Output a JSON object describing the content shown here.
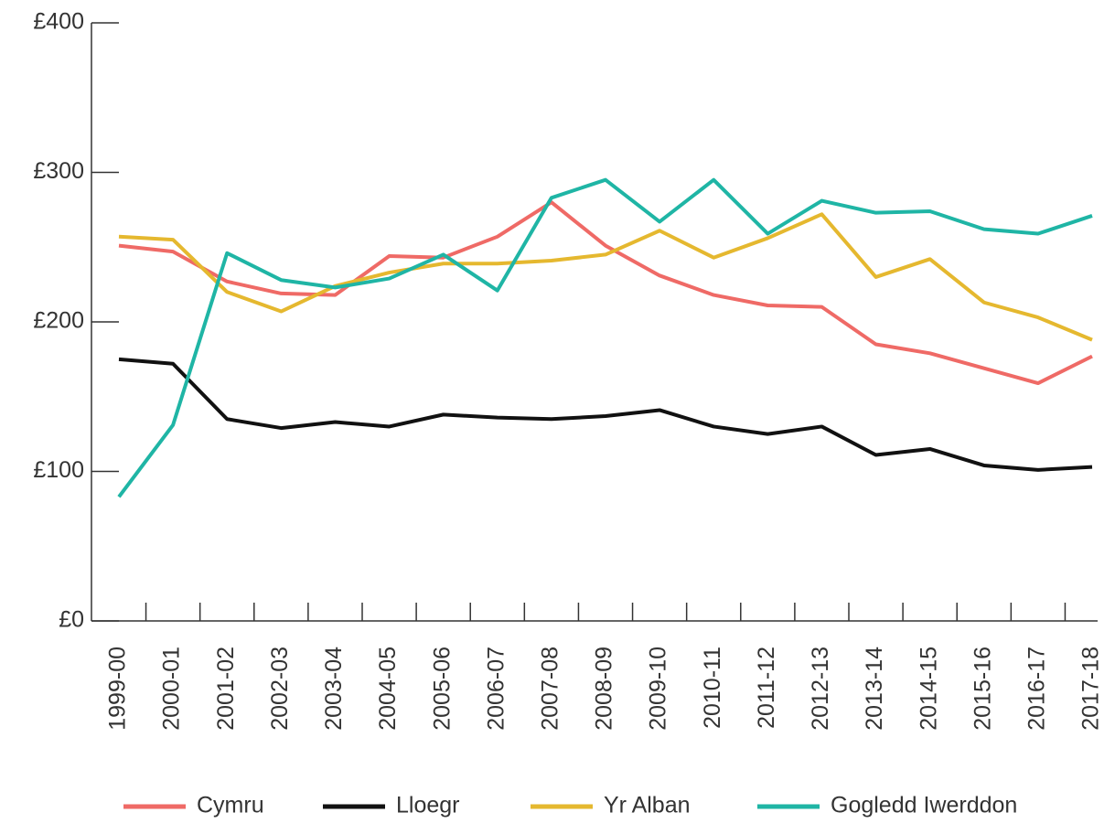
{
  "chart_data": {
    "type": "line",
    "categories": [
      "1999-00",
      "2000-01",
      "2001-02",
      "2002-03",
      "2003-04",
      "2004-05",
      "2005-06",
      "2006-07",
      "2007-08",
      "2008-09",
      "2009-10",
      "2010-11",
      "2011-12",
      "2012-13",
      "2013-14",
      "2014-15",
      "2015-16",
      "2016-17",
      "2017-18"
    ],
    "series": [
      {
        "name": "Cymru",
        "color": "#ef6a66",
        "values": [
          251,
          247,
          227,
          219,
          218,
          244,
          243,
          257,
          280,
          251,
          231,
          218,
          211,
          210,
          185,
          179,
          169,
          159,
          177
        ]
      },
      {
        "name": "Lloegr",
        "color": "#111111",
        "values": [
          175,
          172,
          135,
          129,
          133,
          130,
          138,
          136,
          135,
          137,
          141,
          130,
          125,
          130,
          111,
          115,
          104,
          101,
          103
        ]
      },
      {
        "name": "Yr Alban",
        "color": "#e5b82f",
        "values": [
          257,
          255,
          220,
          207,
          224,
          233,
          239,
          239,
          241,
          245,
          261,
          243,
          256,
          272,
          230,
          242,
          213,
          203,
          188
        ]
      },
      {
        "name": "Gogledd Iwerddon",
        "color": "#1fb5a5",
        "values": [
          83,
          131,
          246,
          228,
          223,
          229,
          245,
          221,
          283,
          295,
          267,
          295,
          259,
          281,
          273,
          274,
          262,
          259,
          271
        ]
      }
    ],
    "ylim": [
      0,
      400
    ],
    "yticks": [
      {
        "value": 0,
        "label": "£0"
      },
      {
        "value": 100,
        "label": "£100"
      },
      {
        "value": 200,
        "label": "£200"
      },
      {
        "value": 300,
        "label": "£300"
      },
      {
        "value": 400,
        "label": "£400"
      }
    ],
    "legend": "bottom"
  }
}
